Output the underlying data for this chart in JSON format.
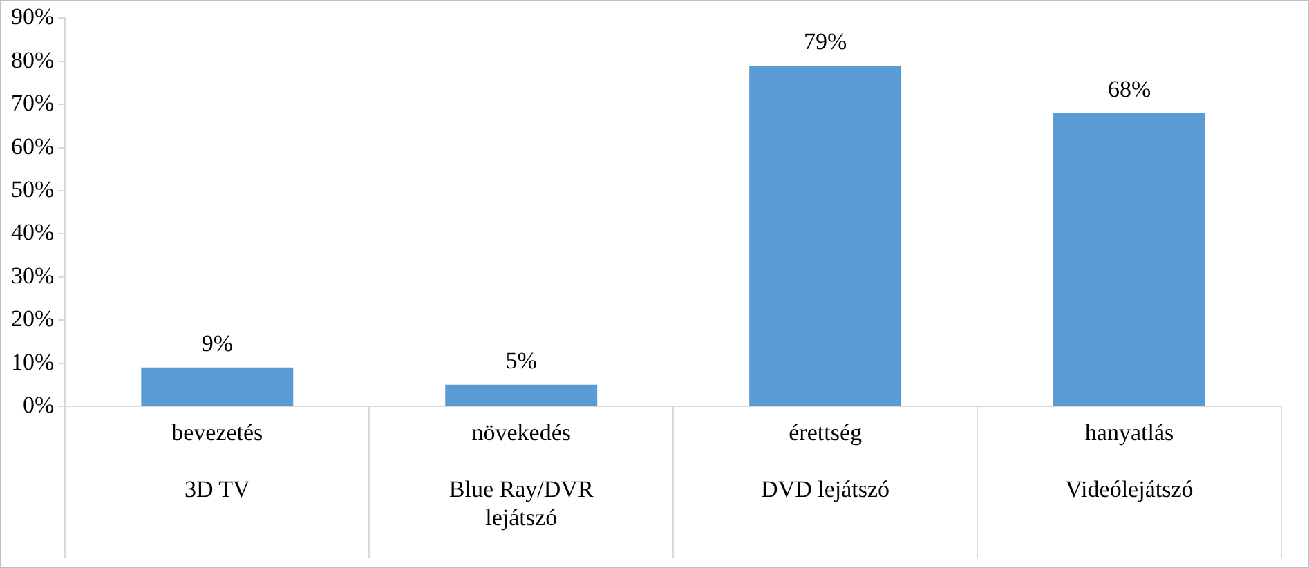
{
  "chart_data": {
    "type": "bar",
    "categories": [
      "bevezetés\n3D TV",
      "növekedés\nBlue Ray/DVR\nlejátszó",
      "érettség\nDVD lejátszó",
      "hanyatlás\nVideólejátszó"
    ],
    "values": [
      9,
      5,
      79,
      68
    ],
    "value_labels": [
      "9%",
      "5%",
      "79%",
      "68%"
    ],
    "color": "#5b9bd5",
    "ylim": [
      0,
      90
    ],
    "yticks": [
      {
        "value": 0,
        "label": "0%"
      },
      {
        "value": 10,
        "label": "10%"
      },
      {
        "value": 20,
        "label": "20%"
      },
      {
        "value": 30,
        "label": "30%"
      },
      {
        "value": 40,
        "label": "40%"
      },
      {
        "value": 50,
        "label": "50%"
      },
      {
        "value": 60,
        "label": "60%"
      },
      {
        "value": 70,
        "label": "70%"
      },
      {
        "value": 80,
        "label": "80%"
      },
      {
        "value": 90,
        "label": "90%"
      }
    ],
    "grid": false,
    "legend": false
  }
}
